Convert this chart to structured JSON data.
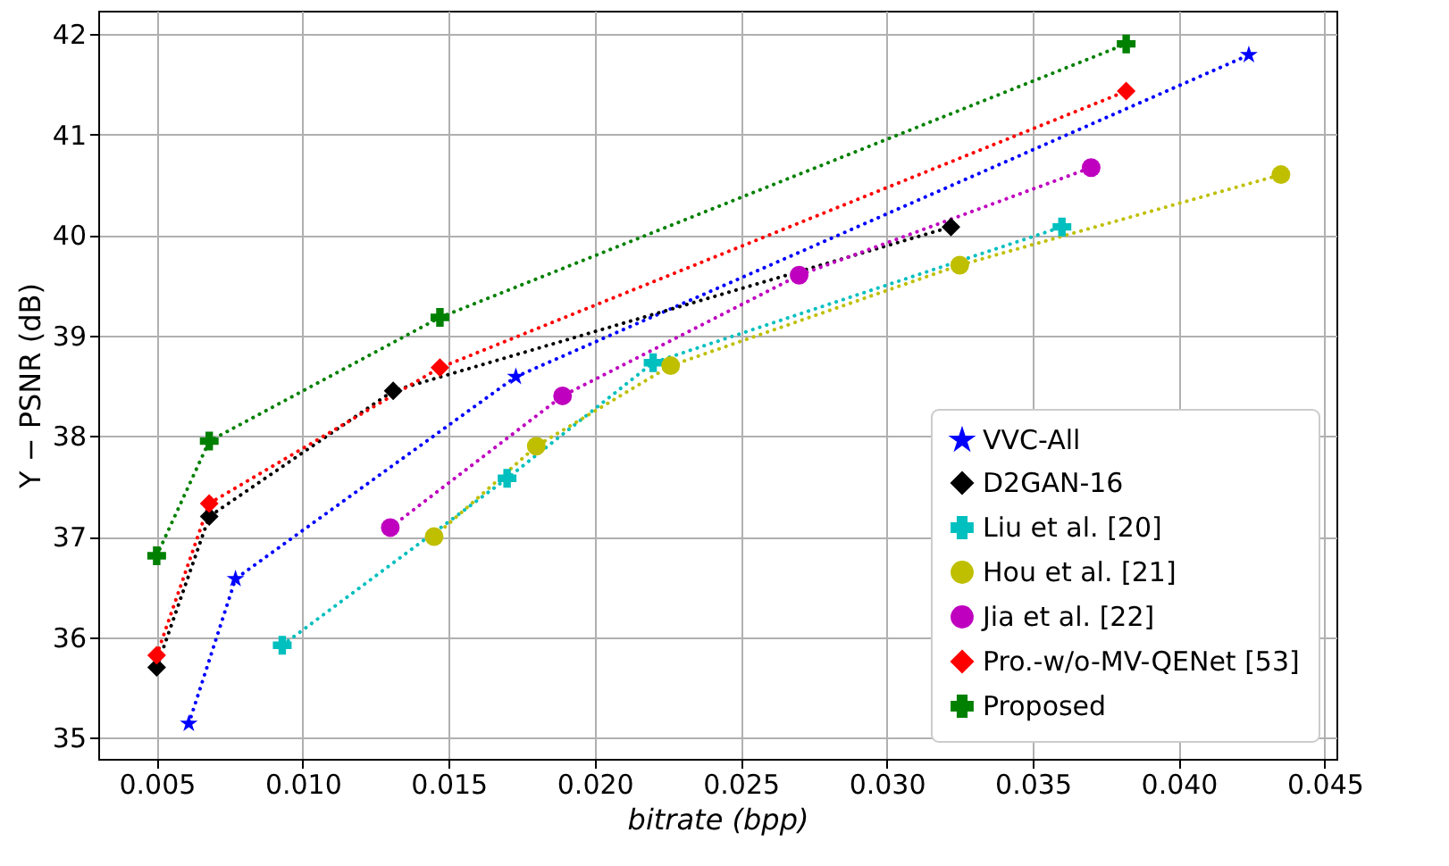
{
  "chart_data": {
    "type": "line",
    "xlabel": "bitrate (bpp)",
    "ylabel": "Y − PSNR (dB)",
    "xlim": [
      0.003,
      0.0454
    ],
    "ylim": [
      34.79,
      42.23
    ],
    "xticks": [
      0.005,
      {
        "value": 0.01,
        "label": "0.010"
      },
      0.015,
      {
        "value": 0.02,
        "label": "0.020"
      },
      0.025,
      {
        "value": 0.03,
        "label": "0.030"
      },
      0.035,
      {
        "value": 0.04,
        "label": "0.040"
      },
      0.045
    ],
    "yticks": [
      35,
      36,
      37,
      38,
      39,
      40,
      41,
      42
    ],
    "grid": true,
    "legend": "bottom right",
    "line_style": "dotted",
    "series": [
      {
        "name": "VVC-All",
        "color": "#0000ff",
        "marker": "star",
        "x": [
          0.0061,
          0.0077,
          0.0173,
          0.0424
        ],
        "values": [
          35.14,
          36.58,
          38.59,
          41.79
        ]
      },
      {
        "name": "D2GAN-16",
        "color": "#000000",
        "marker": "diamond",
        "x": [
          0.005,
          0.0068,
          0.0131,
          0.0322
        ],
        "values": [
          35.7,
          37.2,
          38.45,
          40.08
        ]
      },
      {
        "name": "Liu et al. [20]",
        "color": "#00bfbf",
        "marker": "cross",
        "x": [
          0.0093,
          0.017,
          0.022,
          0.036
        ],
        "values": [
          35.92,
          37.58,
          38.73,
          40.08
        ]
      },
      {
        "name": "Hou et al. [21]",
        "color": "#bfbf00",
        "marker": "circle",
        "x": [
          0.0145,
          0.018,
          0.0226,
          0.0325,
          0.0435
        ],
        "values": [
          37.0,
          37.9,
          38.7,
          39.7,
          40.6
        ]
      },
      {
        "name": "Jia et al. [22]",
        "color": "#bf00bf",
        "marker": "circle",
        "x": [
          0.013,
          0.0189,
          0.027,
          0.037
        ],
        "values": [
          37.09,
          38.4,
          39.6,
          40.67
        ]
      },
      {
        "name": "Pro.-w/o-MV-QENet [53]",
        "color": "#ff0000",
        "marker": "diamond",
        "x": [
          0.005,
          0.0068,
          0.0147,
          0.0382
        ],
        "values": [
          35.82,
          37.33,
          38.68,
          41.43
        ]
      },
      {
        "name": "Proposed",
        "color": "#008000",
        "marker": "cross",
        "x": [
          0.005,
          0.0068,
          0.0147,
          0.0382
        ],
        "values": [
          36.81,
          37.95,
          39.18,
          41.9
        ]
      }
    ]
  }
}
